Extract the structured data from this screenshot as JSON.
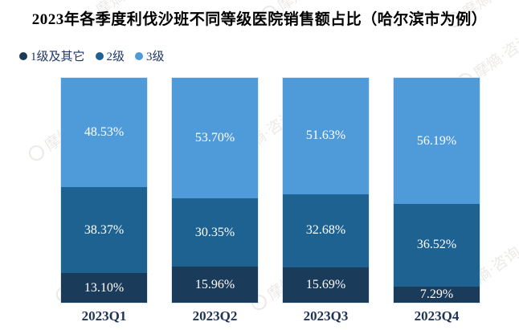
{
  "title": "2023年各季度利伐沙班不同等级医院销售额占比（哈尔滨市为例）",
  "watermark_text": "摩熵·咨询",
  "colors": {
    "tier1": "#1b3b5a",
    "tier2": "#1d6290",
    "tier3": "#4f9ad8",
    "axis_label": "#1f3455",
    "legend_text": "#1f3864",
    "bar_value_text": "#ffffff",
    "background": "#ffffff"
  },
  "chart_data": {
    "type": "bar",
    "stacked": true,
    "percent_stacked": true,
    "grid": false,
    "legend_position": "top-left",
    "ylim": [
      0,
      100
    ],
    "value_suffix": "%",
    "categories": [
      "2023Q1",
      "2023Q2",
      "2023Q3",
      "2023Q4"
    ],
    "series": [
      {
        "name": "1级及其它",
        "color": "#1b3b5a",
        "values": [
          13.1,
          15.96,
          15.69,
          7.29
        ]
      },
      {
        "name": "2级",
        "color": "#1d6290",
        "values": [
          38.37,
          30.35,
          32.68,
          36.52
        ]
      },
      {
        "name": "3级",
        "color": "#4f9ad8",
        "values": [
          48.53,
          53.7,
          51.63,
          56.19
        ]
      }
    ]
  }
}
